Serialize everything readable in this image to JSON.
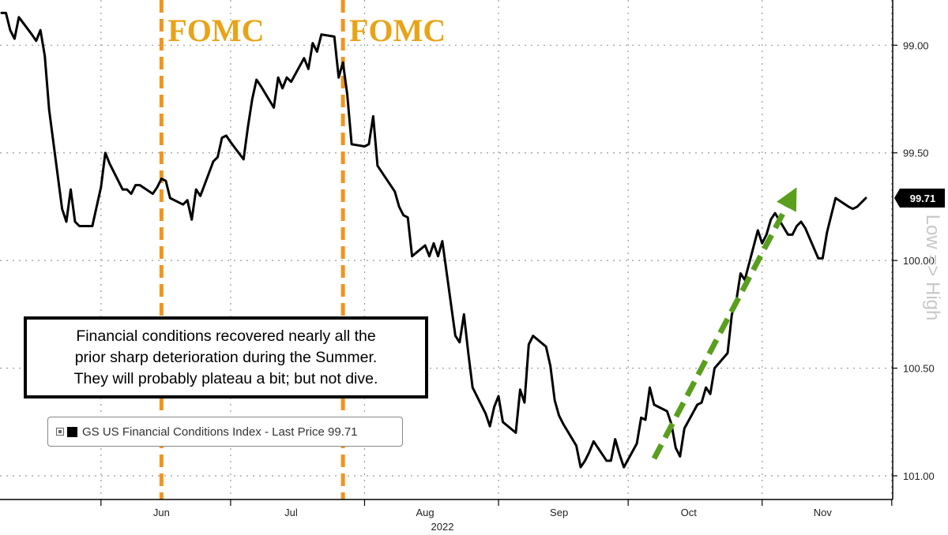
{
  "chart_data": {
    "type": "line",
    "title": "",
    "xlabel": "2022",
    "ylabel": "",
    "y_axis": {
      "side": "right",
      "inverted": true,
      "ylim": [
        98.79,
        101.11
      ],
      "ticks": [
        "99.00",
        "99.50",
        "100.00",
        "100.50",
        "101.00"
      ]
    },
    "x_axis": {
      "months": [
        "Jun",
        "Jul",
        "Aug",
        "Sep",
        "Oct",
        "Nov"
      ],
      "year_label": "2022"
    },
    "grid": true,
    "right_axis_label": "Low => High",
    "last_price_label": "99.71",
    "series": [
      {
        "name": "GS US Financial Conditions Index - Last Price 99.71",
        "color": "#000000",
        "points": [
          [
            "2022-05-09",
            98.85
          ],
          [
            "2022-05-10",
            98.85
          ],
          [
            "2022-05-11",
            98.93
          ],
          [
            "2022-05-12",
            98.97
          ],
          [
            "2022-05-13",
            98.87
          ],
          [
            "2022-05-16",
            98.95
          ],
          [
            "2022-05-17",
            98.98
          ],
          [
            "2022-05-18",
            98.93
          ],
          [
            "2022-05-19",
            99.05
          ],
          [
            "2022-05-20",
            99.3
          ],
          [
            "2022-05-23",
            99.76
          ],
          [
            "2022-05-24",
            99.82
          ],
          [
            "2022-05-25",
            99.67
          ],
          [
            "2022-05-26",
            99.82
          ],
          [
            "2022-05-27",
            99.84
          ],
          [
            "2022-05-30",
            99.84
          ],
          [
            "2022-05-31",
            99.75
          ],
          [
            "2022-06-01",
            99.66
          ],
          [
            "2022-06-02",
            99.5
          ],
          [
            "2022-06-03",
            99.55
          ],
          [
            "2022-06-06",
            99.67
          ],
          [
            "2022-06-07",
            99.67
          ],
          [
            "2022-06-08",
            99.69
          ],
          [
            "2022-06-09",
            99.65
          ],
          [
            "2022-06-10",
            99.65
          ],
          [
            "2022-06-13",
            99.69
          ],
          [
            "2022-06-14",
            99.66
          ],
          [
            "2022-06-15",
            99.62
          ],
          [
            "2022-06-16",
            99.63
          ],
          [
            "2022-06-17",
            99.71
          ],
          [
            "2022-06-20",
            99.74
          ],
          [
            "2022-06-21",
            99.72
          ],
          [
            "2022-06-22",
            99.81
          ],
          [
            "2022-06-23",
            99.67
          ],
          [
            "2022-06-24",
            99.7
          ],
          [
            "2022-06-27",
            99.54
          ],
          [
            "2022-06-28",
            99.52
          ],
          [
            "2022-06-29",
            99.43
          ],
          [
            "2022-06-30",
            99.42
          ],
          [
            "2022-07-01",
            99.45
          ],
          [
            "2022-07-04",
            99.53
          ],
          [
            "2022-07-05",
            99.38
          ],
          [
            "2022-07-06",
            99.25
          ],
          [
            "2022-07-07",
            99.16
          ],
          [
            "2022-07-08",
            99.19
          ],
          [
            "2022-07-11",
            99.29
          ],
          [
            "2022-07-12",
            99.15
          ],
          [
            "2022-07-13",
            99.2
          ],
          [
            "2022-07-14",
            99.15
          ],
          [
            "2022-07-15",
            99.17
          ],
          [
            "2022-07-18",
            99.06
          ],
          [
            "2022-07-19",
            99.11
          ],
          [
            "2022-07-20",
            98.99
          ],
          [
            "2022-07-21",
            99.03
          ],
          [
            "2022-07-22",
            98.95
          ],
          [
            "2022-07-25",
            98.96
          ],
          [
            "2022-07-26",
            99.15
          ],
          [
            "2022-07-27",
            99.08
          ],
          [
            "2022-07-28",
            99.23
          ],
          [
            "2022-07-29",
            99.46
          ],
          [
            "2022-08-01",
            99.47
          ],
          [
            "2022-08-02",
            99.46
          ],
          [
            "2022-08-03",
            99.33
          ],
          [
            "2022-08-04",
            99.56
          ],
          [
            "2022-08-05",
            99.59
          ],
          [
            "2022-08-08",
            99.68
          ],
          [
            "2022-08-09",
            99.75
          ],
          [
            "2022-08-10",
            99.79
          ],
          [
            "2022-08-11",
            99.8
          ],
          [
            "2022-08-12",
            99.98
          ],
          [
            "2022-08-15",
            99.93
          ],
          [
            "2022-08-16",
            99.98
          ],
          [
            "2022-08-17",
            99.92
          ],
          [
            "2022-08-18",
            99.98
          ],
          [
            "2022-08-19",
            99.91
          ],
          [
            "2022-08-22",
            100.35
          ],
          [
            "2022-08-23",
            100.38
          ],
          [
            "2022-08-24",
            100.25
          ],
          [
            "2022-08-25",
            100.43
          ],
          [
            "2022-08-26",
            100.59
          ],
          [
            "2022-08-29",
            100.71
          ],
          [
            "2022-08-30",
            100.77
          ],
          [
            "2022-08-31",
            100.68
          ],
          [
            "2022-09-01",
            100.63
          ],
          [
            "2022-09-02",
            100.75
          ],
          [
            "2022-09-05",
            100.8
          ],
          [
            "2022-09-06",
            100.6
          ],
          [
            "2022-09-07",
            100.66
          ],
          [
            "2022-09-08",
            100.39
          ],
          [
            "2022-09-09",
            100.35
          ],
          [
            "2022-09-12",
            100.4
          ],
          [
            "2022-09-13",
            100.49
          ],
          [
            "2022-09-14",
            100.65
          ],
          [
            "2022-09-15",
            100.72
          ],
          [
            "2022-09-16",
            100.76
          ],
          [
            "2022-09-19",
            100.86
          ],
          [
            "2022-09-20",
            100.96
          ],
          [
            "2022-09-21",
            100.93
          ],
          [
            "2022-09-22",
            100.89
          ],
          [
            "2022-09-23",
            100.84
          ],
          [
            "2022-09-26",
            100.93
          ],
          [
            "2022-09-27",
            100.93
          ],
          [
            "2022-09-28",
            100.83
          ],
          [
            "2022-09-29",
            100.9
          ],
          [
            "2022-09-30",
            100.96
          ],
          [
            "2022-10-03",
            100.85
          ],
          [
            "2022-10-04",
            100.73
          ],
          [
            "2022-10-05",
            100.74
          ],
          [
            "2022-10-06",
            100.59
          ],
          [
            "2022-10-07",
            100.67
          ],
          [
            "2022-10-10",
            100.7
          ],
          [
            "2022-10-11",
            100.76
          ],
          [
            "2022-10-12",
            100.87
          ],
          [
            "2022-10-13",
            100.91
          ],
          [
            "2022-10-14",
            100.78
          ],
          [
            "2022-10-17",
            100.67
          ],
          [
            "2022-10-18",
            100.66
          ],
          [
            "2022-10-19",
            100.59
          ],
          [
            "2022-10-20",
            100.62
          ],
          [
            "2022-10-21",
            100.5
          ],
          [
            "2022-10-24",
            100.43
          ],
          [
            "2022-10-25",
            100.25
          ],
          [
            "2022-10-26",
            100.19
          ],
          [
            "2022-10-27",
            100.06
          ],
          [
            "2022-10-28",
            100.09
          ],
          [
            "2022-10-31",
            99.86
          ],
          [
            "2022-11-01",
            99.92
          ],
          [
            "2022-11-02",
            99.88
          ],
          [
            "2022-11-03",
            99.81
          ],
          [
            "2022-11-04",
            99.78
          ],
          [
            "2022-11-07",
            99.88
          ],
          [
            "2022-11-08",
            99.88
          ],
          [
            "2022-11-09",
            99.84
          ],
          [
            "2022-11-10",
            99.82
          ],
          [
            "2022-11-11",
            99.85
          ],
          [
            "2022-11-14",
            99.99
          ],
          [
            "2022-11-15",
            99.99
          ],
          [
            "2022-11-16",
            99.87
          ],
          [
            "2022-11-17",
            99.79
          ],
          [
            "2022-11-18",
            99.71
          ],
          [
            "2022-11-21",
            99.75
          ],
          [
            "2022-11-22",
            99.76
          ],
          [
            "2022-11-23",
            99.75
          ],
          [
            "2022-11-24",
            99.73
          ],
          [
            "2022-11-25",
            99.71
          ]
        ]
      }
    ],
    "vertical_markers": [
      {
        "date": "2022-06-15",
        "label": "FOMC",
        "color": "#f39420"
      },
      {
        "date": "2022-07-27",
        "label": "FOMC",
        "color": "#f39420"
      }
    ],
    "arrow": {
      "color": "#5a9e1e",
      "from": [
        "2022-10-07",
        100.92
      ],
      "to": [
        "2022-11-09",
        99.66
      ]
    },
    "annotation_box": {
      "lines": [
        "Financial conditions recovered nearly all the",
        "prior sharp deterioration during the Summer.",
        "They will probably plateau a bit; but not dive."
      ]
    }
  }
}
